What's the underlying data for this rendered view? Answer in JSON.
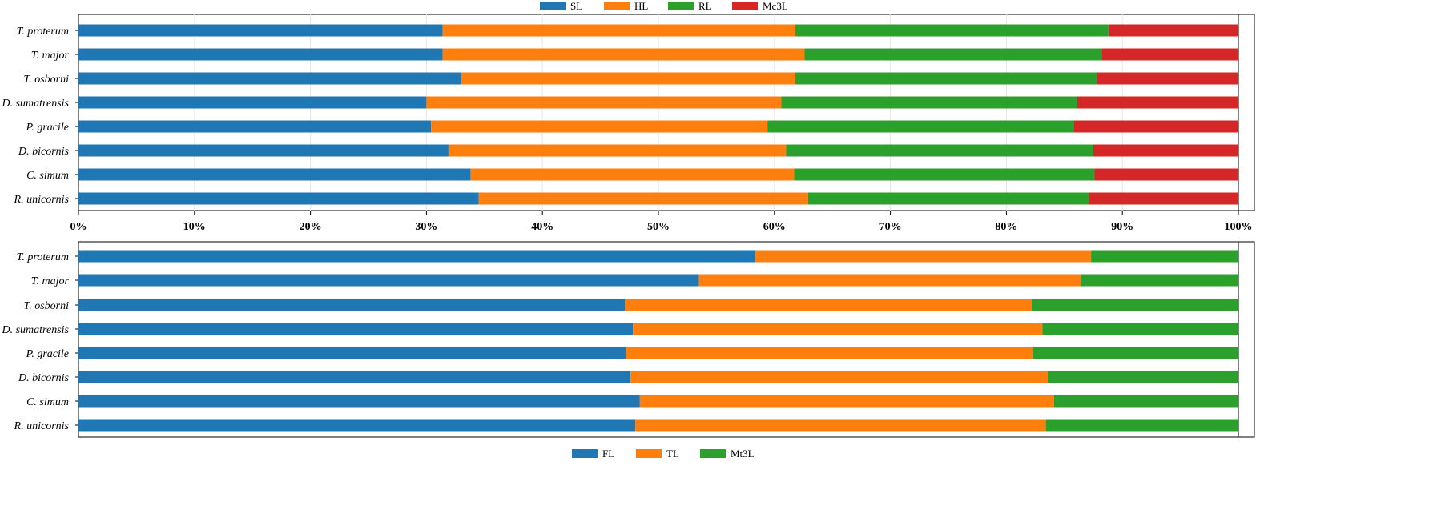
{
  "colors": {
    "blue": "#1f77b4",
    "orange": "#ff7f0e",
    "green": "#2ca02c",
    "red": "#d62728"
  },
  "chart_data": [
    {
      "type": "bar",
      "orientation": "horizontal",
      "stacked": "percent",
      "grid": true,
      "legend_position": "top",
      "categories": [
        "T. proterum",
        "T. major",
        "T. osborni",
        "D. sumatrensis",
        "P. gracile",
        "D. bicornis",
        "C. simum",
        "R. unicornis"
      ],
      "series": [
        {
          "name": "SL",
          "color": "#1f77b4",
          "values": [
            31.4,
            31.4,
            33.0,
            30.0,
            30.4,
            31.9,
            33.8,
            34.5
          ]
        },
        {
          "name": "HL",
          "color": "#ff7f0e",
          "values": [
            30.4,
            31.2,
            28.8,
            30.6,
            29.0,
            29.1,
            27.9,
            28.4
          ]
        },
        {
          "name": "RL",
          "color": "#2ca02c",
          "values": [
            27.0,
            25.6,
            26.0,
            25.5,
            26.4,
            26.5,
            25.9,
            24.2
          ]
        },
        {
          "name": "Mc3L",
          "color": "#d62728",
          "values": [
            11.2,
            11.8,
            12.2,
            13.9,
            14.2,
            12.5,
            12.4,
            12.9
          ]
        }
      ],
      "xlim": [
        0,
        100
      ],
      "xticks": [
        "0%",
        "10%",
        "20%",
        "30%",
        "40%",
        "50%",
        "60%",
        "70%",
        "80%",
        "90%",
        "100%"
      ]
    },
    {
      "type": "bar",
      "orientation": "horizontal",
      "stacked": "percent",
      "grid": false,
      "legend_position": "bottom",
      "categories": [
        "T. proterum",
        "T. major",
        "T. osborni",
        "D. sumatrensis",
        "P. gracile",
        "D. bicornis",
        "C. simum",
        "R. unicornis"
      ],
      "series": [
        {
          "name": "FL",
          "color": "#1f77b4",
          "values": [
            58.3,
            53.5,
            47.1,
            47.8,
            47.2,
            47.6,
            48.4,
            48.0
          ]
        },
        {
          "name": "TL",
          "color": "#ff7f0e",
          "values": [
            29.0,
            32.9,
            35.1,
            35.3,
            35.1,
            36.0,
            35.7,
            35.4
          ]
        },
        {
          "name": "Mt3L",
          "color": "#2ca02c",
          "values": [
            12.7,
            13.6,
            17.8,
            16.9,
            17.7,
            16.4,
            15.9,
            16.6
          ]
        }
      ],
      "xlim": [
        0,
        100
      ]
    }
  ]
}
